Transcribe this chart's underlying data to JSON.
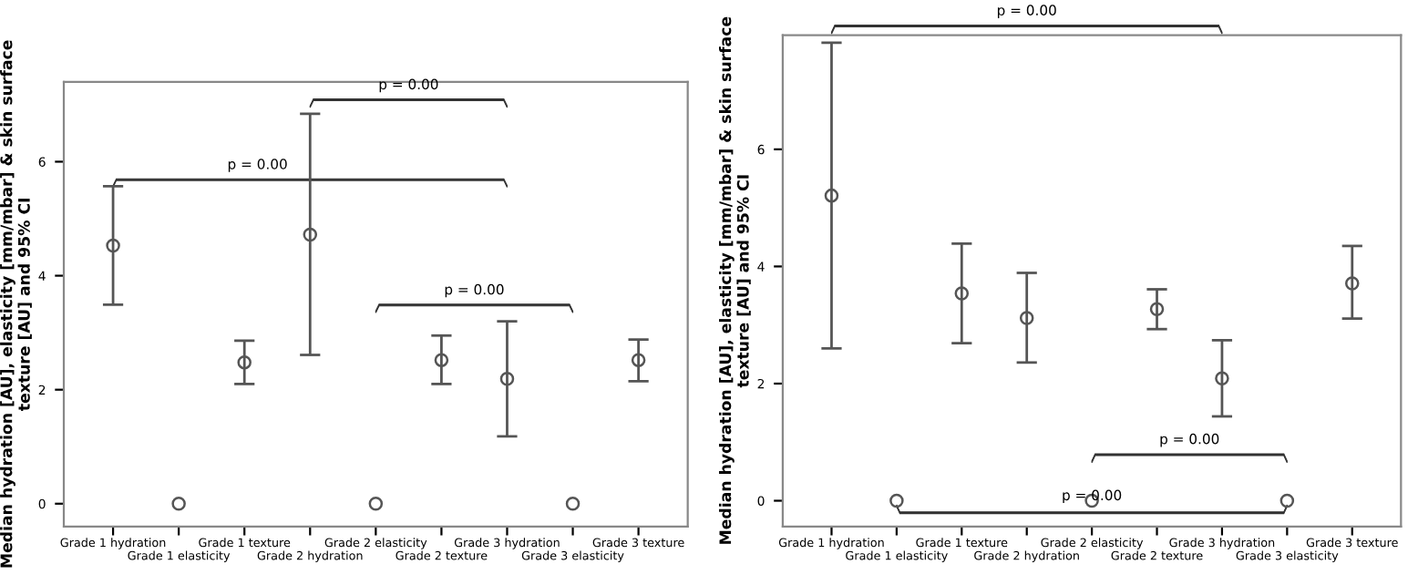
{
  "chart_data": [
    {
      "type": "scatter",
      "ylabel": "Median hydration [AU], elasticity [mm/mbar] & skin surface texture [AU] and 95% CI",
      "categories": [
        "Grade 1 hydration",
        "Grade 1 elasticity",
        "Grade 1 texture",
        "Grade 2 hydration",
        "Grade 2 elasticity",
        "Grade 2 texture",
        "Grade 3 hydration",
        "Grade 3 elasticity",
        "Grade 3 texture"
      ],
      "values": [
        4.53,
        0,
        2.48,
        4.72,
        0,
        2.52,
        2.19,
        0,
        2.52
      ],
      "errors": [
        [
          3.49,
          5.57
        ],
        null,
        [
          2.1,
          2.86
        ],
        [
          2.61,
          6.84
        ],
        null,
        [
          2.1,
          2.95
        ],
        [
          1.18,
          3.2
        ],
        null,
        [
          2.15,
          2.88
        ]
      ],
      "color": "#555555",
      "marker": "circle",
      "ylim": [
        -0.4,
        7.4
      ],
      "yticks": [
        0,
        2,
        4,
        6
      ],
      "grid": false,
      "legend": false,
      "annotations": [
        "p = 0.00",
        "p = 0.00",
        "p = 0.00"
      ]
    },
    {
      "type": "scatter",
      "ylabel": "Median hydration [AU], elasticity [mm/mbar] & skin surface texture [AU] and 95% CI",
      "categories": [
        "Grade 1 hydration",
        "Grade 1 elasticity",
        "Grade 1 texture",
        "Grade 2 hydration",
        "Grade 2 elasticity",
        "Grade 2 texture",
        "Grade 3 hydration",
        "Grade 3 elasticity",
        "Grade 3 texture"
      ],
      "values": [
        5.21,
        0,
        3.54,
        3.12,
        0,
        3.27,
        2.09,
        0,
        3.71
      ],
      "errors": [
        [
          2.6,
          7.82
        ],
        null,
        [
          2.69,
          4.39
        ],
        [
          2.36,
          3.89
        ],
        null,
        [
          2.93,
          3.61
        ],
        [
          1.44,
          2.74
        ],
        null,
        [
          3.11,
          4.35
        ]
      ],
      "color": "#555555",
      "marker": "circle",
      "ylim": [
        -0.44,
        7.95
      ],
      "yticks": [
        0,
        2,
        4,
        6
      ],
      "grid": false,
      "legend": false,
      "annotations": [
        "p = 0.00",
        "p = 0.00",
        "p = 0.00"
      ]
    }
  ]
}
